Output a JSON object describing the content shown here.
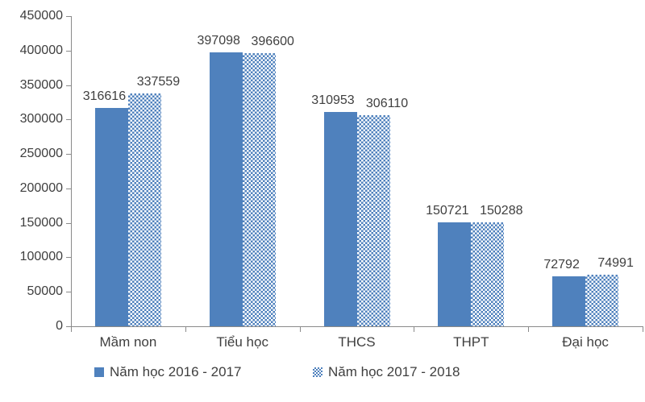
{
  "chart_data": {
    "type": "bar",
    "title": "",
    "xlabel": "",
    "ylabel": "",
    "categories": [
      "Mầm non",
      "Tiểu học",
      "THCS",
      "THPT",
      "Đại học"
    ],
    "series": [
      {
        "name": "Năm học 2016 - 2017",
        "pattern": "solid",
        "values": [
          316616,
          397098,
          310953,
          150721,
          72792
        ]
      },
      {
        "name": "Năm học 2017 - 2018",
        "pattern": "checker",
        "values": [
          337559,
          396600,
          306110,
          150288,
          74991
        ]
      }
    ],
    "ylim": [
      0,
      450000
    ],
    "ytick_step": 50000,
    "y_tick_labels": [
      "0",
      "50000",
      "100000",
      "150000",
      "200000",
      "250000",
      "300000",
      "350000",
      "400000",
      "450000"
    ],
    "grid": false,
    "data_labels": true,
    "legend_position": "bottom",
    "colors": {
      "bar": "#4f81bd",
      "text": "#3f3f3f",
      "axis": "#8a8a8a",
      "background": "#ffffff"
    }
  }
}
